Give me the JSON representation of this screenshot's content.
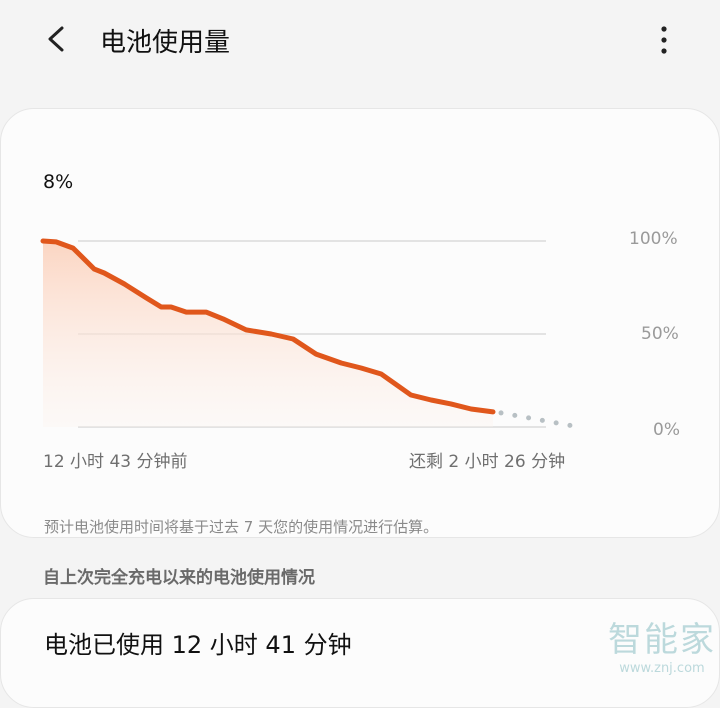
{
  "header": {
    "title": "电池使用量",
    "back_icon": "chevron-left-icon",
    "more_icon": "more-vertical-icon"
  },
  "battery_card": {
    "current_level": "8%",
    "y_ticks": [
      "100%",
      "50%",
      "0%"
    ],
    "start_label": "12 小时 43 分钟前",
    "end_label": "还剩 2 小时 26 分钟",
    "note": "预计电池使用时间将基于过去 7 天您的使用情况进行估算。"
  },
  "section_title": "自上次完全充电以来的电池使用情况",
  "usage_card": {
    "used_text": "电池已使用 12 小时 41 分钟"
  },
  "watermark": {
    "logo": "智能家",
    "url": "www.znj.com"
  },
  "colors": {
    "line": "#e0571c",
    "fill": "#fbd9c8",
    "projection": "#b8c0c4",
    "grid": "#e3e3e3"
  },
  "chart_data": {
    "type": "area",
    "ylim": [
      0,
      100
    ],
    "y_unit": "%",
    "y_ticks": [
      0,
      50,
      100
    ],
    "x_unit": "hours relative to now",
    "xlim": [
      -12.72,
      2.43
    ],
    "grid": true,
    "series": [
      {
        "x": [
          -12.72,
          -12.35,
          -11.87,
          -11.27,
          -10.99,
          -10.42,
          -9.8,
          -9.38,
          -9.1,
          -8.67,
          -8.11,
          -7.63,
          -6.98,
          -6.27,
          -5.65,
          -5.0,
          -4.29,
          -3.73,
          -3.16,
          -2.32,
          -1.75,
          -1.19,
          -0.62,
          0
        ],
        "y": [
          100,
          99.5,
          96.2,
          84.9,
          82.8,
          76.9,
          69.4,
          64.5,
          64.5,
          61.8,
          61.8,
          58.1,
          52.2,
          50.0,
          47.3,
          39.2,
          34.4,
          31.7,
          28.5,
          17.2,
          14.5,
          12.4,
          9.7,
          8.1
        ]
      },
      {
        "style": "projection-dotted",
        "x": [
          0,
          2.43
        ],
        "y": [
          8.1,
          0
        ]
      }
    ]
  }
}
